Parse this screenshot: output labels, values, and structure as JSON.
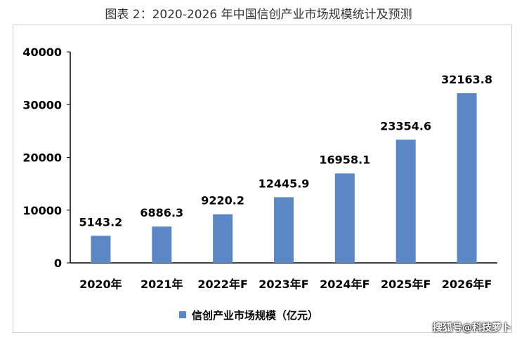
{
  "title": "图表 2：2020-2026 年中国信创产业市场规模统计及预测",
  "chart_data": {
    "type": "bar",
    "categories": [
      "2020年",
      "2021年",
      "2022年F",
      "2023年F",
      "2024年F",
      "2025年F",
      "2026年F"
    ],
    "series": [
      {
        "name": "信创产业市场规模（亿元）",
        "values": [
          5143.2,
          6886.3,
          9220.2,
          12445.9,
          16958.1,
          23354.6,
          32163.8
        ],
        "labels": [
          "5143.2",
          "6886.3",
          "9220.2",
          "12445.9",
          "16958.1",
          "23354.6",
          "32163.8"
        ],
        "color": "#5B87C5"
      }
    ],
    "ylim": [
      0,
      40000
    ],
    "yticks": [
      "0",
      "10000",
      "20000",
      "30000",
      "40000"
    ],
    "legend_position": "bottom",
    "grid": false
  },
  "watermark": "搜狐号@科技萝卜"
}
